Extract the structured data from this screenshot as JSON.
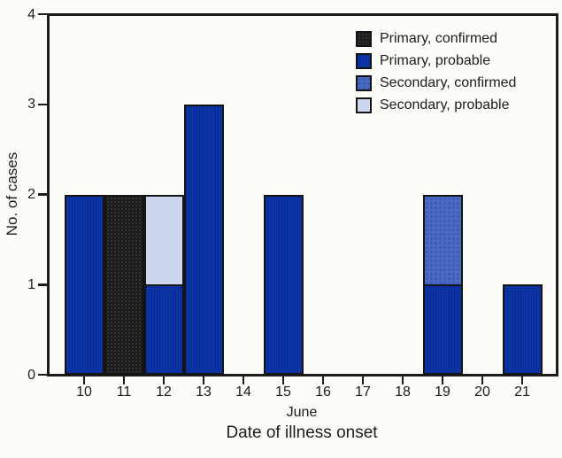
{
  "background": "#fcfdf8",
  "frame_color": "#1c1c1c",
  "chart_data": {
    "type": "bar",
    "stacked": true,
    "title": "",
    "xlabel_line1": "June",
    "xlabel_line2": "Date of illness onset",
    "ylabel": "No. of cases",
    "ylim": [
      0,
      4
    ],
    "yticks": [
      "0",
      "1",
      "2",
      "3",
      "4"
    ],
    "categories": [
      "10",
      "11",
      "12",
      "13",
      "14",
      "15",
      "16",
      "17",
      "18",
      "19",
      "20",
      "21"
    ],
    "series": [
      {
        "name": "Primary, confirmed",
        "color": "#1d1d1d",
        "values": [
          0,
          2,
          0,
          0,
          0,
          0,
          0,
          0,
          0,
          0,
          0,
          0
        ]
      },
      {
        "name": "Primary, probable",
        "color": "#0c34a6",
        "values": [
          2,
          0,
          1,
          3,
          0,
          2,
          0,
          0,
          0,
          1,
          0,
          1
        ]
      },
      {
        "name": "Secondary, confirmed",
        "color": "#4a69c2",
        "values": [
          0,
          0,
          0,
          0,
          0,
          0,
          0,
          0,
          0,
          1,
          0,
          0
        ]
      },
      {
        "name": "Secondary, probable",
        "color": "#ccd6ee",
        "values": [
          0,
          0,
          1,
          0,
          0,
          0,
          0,
          0,
          0,
          0,
          0,
          0
        ]
      }
    ],
    "legend": [
      {
        "label": "Primary, confirmed"
      },
      {
        "label": "Primary, probable"
      },
      {
        "label": "Secondary, confirmed"
      },
      {
        "label": "Secondary, probable"
      }
    ],
    "legend_position": "top-right",
    "grid": false
  }
}
